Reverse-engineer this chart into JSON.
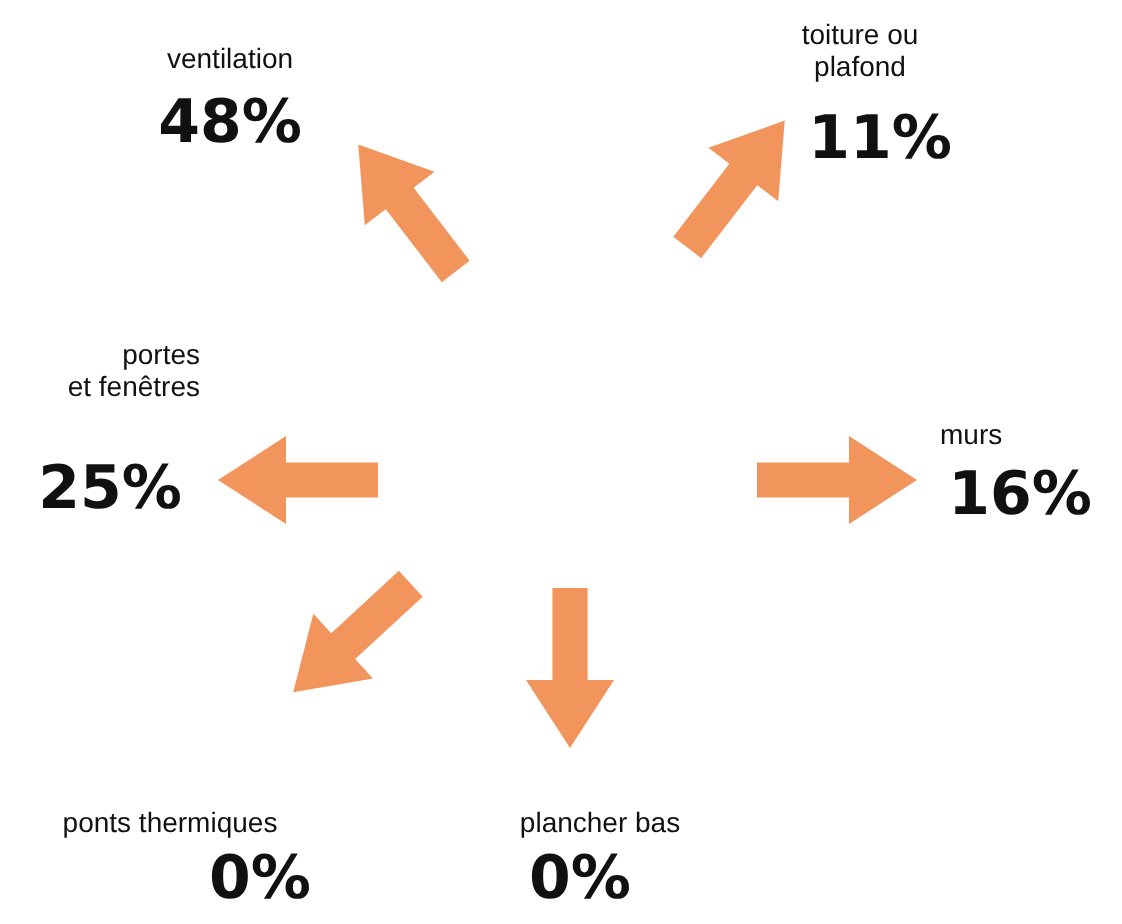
{
  "chart_data": {
    "type": "other",
    "categories": [
      "ventilation",
      "toiture ou\nplafond",
      "portes\net fenêtres",
      "murs",
      "ponts thermiques",
      "plancher bas"
    ],
    "values": [
      48,
      11,
      25,
      16,
      0,
      0
    ],
    "value_labels": [
      "48%",
      "11%",
      "25%",
      "16%",
      "0%",
      "0%"
    ],
    "colors": [
      "#f08a4b",
      "#f08a4b",
      "#f08a4b",
      "#f08a4b",
      "#f08a4b",
      "#f08a4b"
    ]
  }
}
